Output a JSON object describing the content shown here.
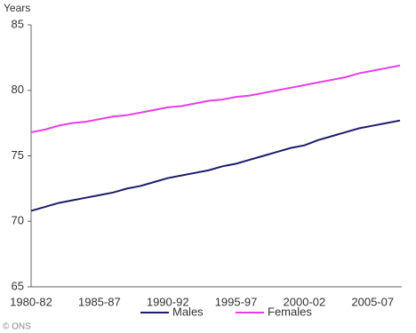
{
  "chart_data": {
    "type": "line",
    "y_label": "Years",
    "source": "© ONS",
    "categories": [
      "1980-82",
      null,
      null,
      null,
      null,
      "1985-87",
      null,
      null,
      null,
      null,
      "1990-92",
      null,
      null,
      null,
      null,
      "1995-97",
      null,
      null,
      null,
      null,
      "2000-02",
      null,
      null,
      null,
      null,
      "2005-07",
      null,
      null
    ],
    "series": [
      {
        "name": "Males",
        "color": "#1c1c6b",
        "values": [
          70.8,
          71.1,
          71.4,
          71.6,
          71.8,
          72.0,
          72.2,
          72.5,
          72.7,
          73.0,
          73.3,
          73.5,
          73.7,
          73.9,
          74.2,
          74.4,
          74.7,
          75.0,
          75.3,
          75.6,
          75.8,
          76.2,
          76.5,
          76.8,
          77.1,
          77.3,
          77.5,
          77.7
        ]
      },
      {
        "name": "Females",
        "color": "#e63ee6",
        "values": [
          76.8,
          77.0,
          77.3,
          77.5,
          77.6,
          77.8,
          78.0,
          78.1,
          78.3,
          78.5,
          78.7,
          78.8,
          79.0,
          79.2,
          79.3,
          79.5,
          79.6,
          79.8,
          80.0,
          80.2,
          80.4,
          80.6,
          80.8,
          81.0,
          81.3,
          81.5,
          81.7,
          81.9
        ]
      }
    ],
    "ylim": [
      65,
      85
    ],
    "yticks": [
      65,
      70,
      75,
      80,
      85
    ],
    "grid": false,
    "legend": "bottom"
  }
}
